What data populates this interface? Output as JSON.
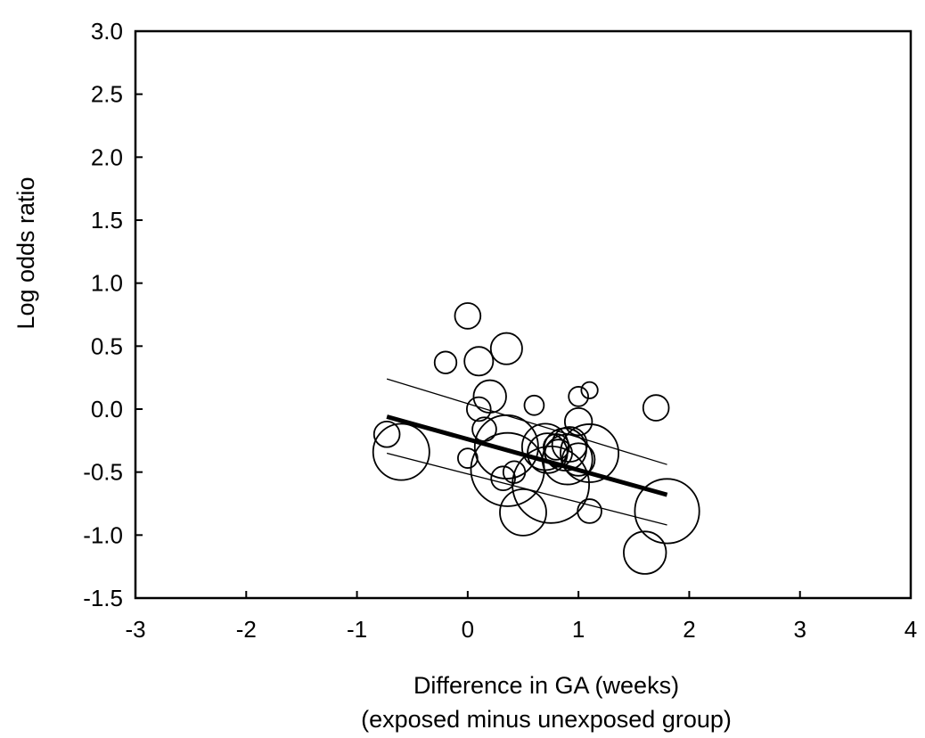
{
  "chart_data": {
    "type": "scatter",
    "title": "",
    "xlabel": "Difference in GA (weeks)",
    "xlabel_line2": "(exposed minus unexposed group)",
    "ylabel": "Log odds ratio",
    "xlim": [
      -3,
      4
    ],
    "ylim": [
      -1.5,
      3.0
    ],
    "x_ticks": [
      -3,
      -2,
      -1,
      0,
      1,
      2,
      3,
      4
    ],
    "x_tick_labels": [
      "-3",
      "-2",
      "-1",
      "0",
      "1",
      "2",
      "3",
      "4"
    ],
    "y_ticks": [
      3.0,
      2.5,
      2.0,
      1.5,
      1.0,
      0.5,
      0.0,
      -0.5,
      -1.0,
      -1.5
    ],
    "y_tick_labels": [
      "3.0",
      "2.5",
      "2.0",
      "1.5",
      "1.0",
      "0.5",
      "0.0",
      "-0.5",
      "-1.0",
      "-1.5"
    ],
    "grid": false,
    "bubble_note": "marker area proportional to study weight",
    "points": [
      {
        "x": -0.73,
        "y": -0.2,
        "size": 0.05
      },
      {
        "x": -0.6,
        "y": -0.34,
        "size": 0.4
      },
      {
        "x": -0.2,
        "y": 0.37,
        "size": 0.03
      },
      {
        "x": 0.0,
        "y": 0.74,
        "size": 0.05
      },
      {
        "x": 0.0,
        "y": -0.39,
        "size": 0.02
      },
      {
        "x": 0.1,
        "y": 0.38,
        "size": 0.07
      },
      {
        "x": 0.1,
        "y": 0.0,
        "size": 0.04
      },
      {
        "x": 0.15,
        "y": -0.16,
        "size": 0.04
      },
      {
        "x": 0.2,
        "y": 0.1,
        "size": 0.1
      },
      {
        "x": 0.35,
        "y": 0.48,
        "size": 0.09
      },
      {
        "x": 0.32,
        "y": -0.55,
        "size": 0.04
      },
      {
        "x": 0.42,
        "y": -0.5,
        "size": 0.03
      },
      {
        "x": 0.35,
        "y": -0.3,
        "size": 0.53
      },
      {
        "x": 0.36,
        "y": -0.48,
        "size": 0.74
      },
      {
        "x": 0.5,
        "y": -0.82,
        "size": 0.25
      },
      {
        "x": 0.6,
        "y": 0.03,
        "size": 0.02
      },
      {
        "x": 0.75,
        "y": -0.6,
        "size": 0.82
      },
      {
        "x": 0.7,
        "y": -0.3,
        "size": 0.25
      },
      {
        "x": 0.72,
        "y": -0.35,
        "size": 0.17
      },
      {
        "x": 0.8,
        "y": -0.3,
        "size": 0.05
      },
      {
        "x": 0.82,
        "y": -0.35,
        "size": 0.06
      },
      {
        "x": 0.88,
        "y": -0.32,
        "size": 0.2
      },
      {
        "x": 0.9,
        "y": -0.4,
        "size": 0.3
      },
      {
        "x": 0.92,
        "y": -0.28,
        "size": 0.12
      },
      {
        "x": 1.0,
        "y": 0.1,
        "size": 0.02
      },
      {
        "x": 1.0,
        "y": -0.1,
        "size": 0.06
      },
      {
        "x": 1.0,
        "y": -0.4,
        "size": 0.1
      },
      {
        "x": 1.1,
        "y": 0.15,
        "size": 0.01
      },
      {
        "x": 1.1,
        "y": -0.81,
        "size": 0.04
      },
      {
        "x": 1.1,
        "y": -0.35,
        "size": 0.43
      },
      {
        "x": 1.6,
        "y": -1.14,
        "size": 0.2
      },
      {
        "x": 1.7,
        "y": 0.01,
        "size": 0.05
      },
      {
        "x": 1.8,
        "y": -0.81,
        "size": 0.55
      }
    ],
    "regression_line": {
      "x": [
        -0.73,
        1.8
      ],
      "y": [
        -0.06,
        -0.68
      ]
    },
    "ci_upper": {
      "x": [
        -0.73,
        1.8
      ],
      "y": [
        0.24,
        -0.44
      ]
    },
    "ci_lower": {
      "x": [
        -0.73,
        1.8
      ],
      "y": [
        -0.35,
        -0.92
      ]
    }
  }
}
